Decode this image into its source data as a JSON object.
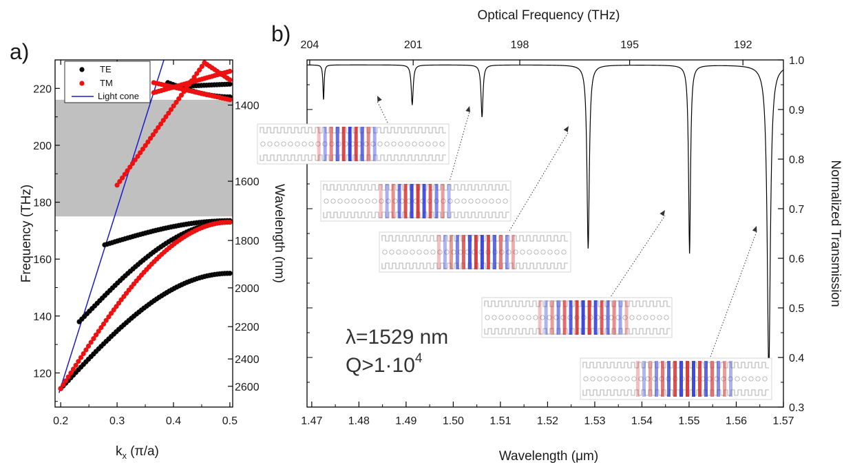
{
  "panels": {
    "a": {
      "letter": "a)",
      "xlabel_main": "k",
      "xlabel_sub": "x",
      "xlabel_rest": " (π/a)",
      "ylabel": "Frequency (THz)",
      "ylabel_right": "Wavelength (nm)"
    },
    "b": {
      "letter": "b)",
      "xlabel_main": "Wavelength (",
      "xlabel_mu": "μ",
      "xlabel_rest": "m)",
      "xlabel_top": "Optical Frequency (THz)",
      "ylabel_right": "Normalized Transmission",
      "annotation_line1": "λ=1529 nm",
      "annotation_line2_main": "Q>1·10",
      "annotation_line2_sup": "4"
    }
  },
  "chart_data": [
    {
      "panel": "a",
      "type": "scatter",
      "xlabel": "kₓ (π/a)",
      "ylabel": "Frequency (THz)",
      "xlim": [
        0.19,
        0.505
      ],
      "ylim": [
        108,
        230
      ],
      "x_ticks": [
        "0.2",
        "0.3",
        "0.4",
        "0.5"
      ],
      "x_tick_values": [
        0.2,
        0.3,
        0.4,
        0.5
      ],
      "y_ticks": [
        "120",
        "140",
        "160",
        "180",
        "200",
        "220"
      ],
      "y_tick_values": [
        120,
        140,
        160,
        180,
        200,
        220
      ],
      "right_axis": {
        "label": "Wavelength (nm)",
        "ticks": [
          "1400",
          "1600",
          "1800",
          "2000",
          "2200",
          "2400",
          "2600"
        ],
        "tick_values_nm": [
          1400,
          1600,
          1800,
          2000,
          2200,
          2400,
          2600
        ]
      },
      "bandgap_thz": [
        175,
        216
      ],
      "bandgap_color": "#c0c0c0",
      "legend": {
        "position": "top-left",
        "entries": [
          {
            "label": "TE",
            "color": "#000000",
            "kind": "marker"
          },
          {
            "label": "TM",
            "color": "#ee1111",
            "kind": "marker"
          },
          {
            "label": "Light cone",
            "color": "#1a1acc",
            "kind": "line"
          }
        ]
      },
      "series": [
        {
          "name": "TE",
          "color": "#000000",
          "bands": [
            {
              "k_range": [
                0.2,
                0.5
              ],
              "f_start": 114.5,
              "f_end": 155,
              "shape": "sine"
            },
            {
              "k_range": [
                0.233,
                0.5
              ],
              "f_start": 138,
              "f_end": 173,
              "shape": "sine"
            },
            {
              "k_range": [
                0.278,
                0.5
              ],
              "f_start": 165,
              "f_end": 173.5,
              "shape": "sine"
            },
            {
              "k_range": [
                0.39,
                0.5
              ],
              "f_start": 220.5,
              "f_end": 221.5,
              "shape": "flat"
            },
            {
              "k_range": [
                0.39,
                0.5
              ],
              "f_start": 222,
              "f_end": 217,
              "shape": "sine"
            }
          ]
        },
        {
          "name": "TM",
          "color": "#ee1111",
          "bands": [
            {
              "k_range": [
                0.2,
                0.5
              ],
              "f_start": 114.5,
              "f_end": 173,
              "shape": "sine"
            },
            {
              "k_range": [
                0.3,
                0.455
              ],
              "f_start": 186,
              "f_end": 229,
              "shape": "linear"
            },
            {
              "k_range": [
                0.455,
                0.5
              ],
              "f_start": 229,
              "f_end": 223,
              "shape": "linear"
            },
            {
              "k_range": [
                0.365,
                0.5
              ],
              "f_start": 222,
              "f_end": 216,
              "shape": "linear"
            },
            {
              "k_range": [
                0.365,
                0.5
              ],
              "f_start": 218.5,
              "f_end": 226,
              "shape": "linear"
            }
          ]
        }
      ],
      "light_cone": {
        "color": "#1a1acc",
        "x": [
          0.197,
          0.383
        ],
        "y": [
          113,
          230
        ]
      }
    },
    {
      "panel": "b",
      "type": "line",
      "xlabel": "Wavelength (μm)",
      "top_xlabel": "Optical Frequency (THz)",
      "ylabel": "Normalized Transmission",
      "xlim": [
        1.469,
        1.57
      ],
      "ylim": [
        0.3,
        1.0
      ],
      "x_ticks": [
        "1.47",
        "1.48",
        "1.49",
        "1.50",
        "1.51",
        "1.52",
        "1.53",
        "1.54",
        "1.55",
        "1.56",
        "1.57"
      ],
      "x_tick_values": [
        1.47,
        1.48,
        1.49,
        1.5,
        1.51,
        1.52,
        1.53,
        1.54,
        1.55,
        1.56,
        1.57
      ],
      "y_ticks": [
        "0.3",
        "0.4",
        "0.5",
        "0.6",
        "0.7",
        "0.8",
        "0.9",
        "1.0"
      ],
      "y_tick_values": [
        0.3,
        0.4,
        0.5,
        0.6,
        0.7,
        0.8,
        0.9,
        1.0
      ],
      "top_ticks": [
        "204",
        "201",
        "198",
        "195",
        "192"
      ],
      "top_tick_values_thz": [
        204,
        201,
        198,
        195,
        192
      ],
      "series": [
        {
          "name": "",
          "color": "#000000",
          "baseline": 0.99,
          "dips": [
            {
              "center_um": 1.4725,
              "depth_min": 0.92,
              "width_um": 0.00015
            },
            {
              "center_um": 1.4913,
              "depth_min": 0.91,
              "width_um": 0.00025
            },
            {
              "center_um": 1.5061,
              "depth_min": 0.885,
              "width_um": 0.00025
            },
            {
              "center_um": 1.5286,
              "depth_min": 0.62,
              "width_um": 0.0003
            },
            {
              "center_um": 1.5501,
              "depth_min": 0.61,
              "width_um": 0.00025
            },
            {
              "center_um": 1.5669,
              "depth_min": 0.37,
              "width_um": 0.0004
            }
          ]
        }
      ]
    }
  ]
}
